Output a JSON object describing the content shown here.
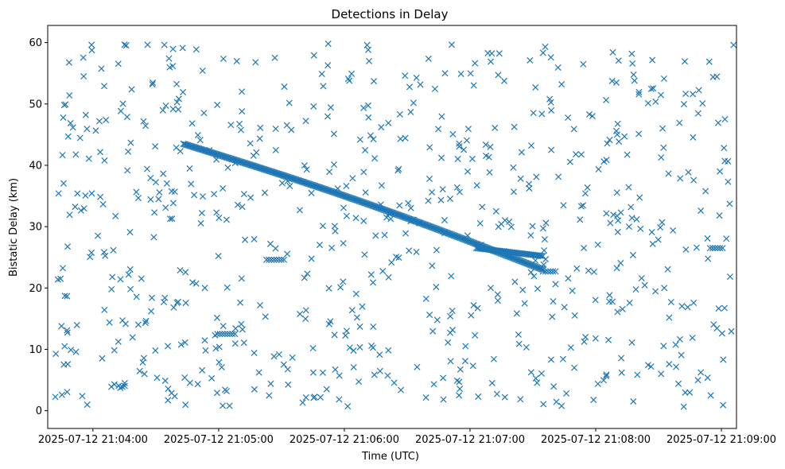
{
  "chart_data": {
    "type": "scatter",
    "title": "Detections in Delay",
    "xlabel": "Time (UTC)",
    "ylabel": "Bistatic Delay (km)",
    "x_unit": "minutes after 2025-07-12 21:04:00",
    "xlim": [
      -0.36,
      5.12
    ],
    "ylim": [
      -2.9,
      62.8
    ],
    "x_ticks": [
      {
        "value": 0,
        "label": "2025-07-12 21:04:00"
      },
      {
        "value": 1,
        "label": "2025-07-12 21:05:00"
      },
      {
        "value": 2,
        "label": "2025-07-12 21:06:00"
      },
      {
        "value": 3,
        "label": "2025-07-12 21:07:00"
      },
      {
        "value": 4,
        "label": "2025-07-12 21:08:00"
      },
      {
        "value": 5,
        "label": "2025-07-12 21:09:00"
      }
    ],
    "y_ticks": [
      {
        "value": 0,
        "label": "0"
      },
      {
        "value": 10,
        "label": "10"
      },
      {
        "value": 20,
        "label": "20"
      },
      {
        "value": 30,
        "label": "30"
      },
      {
        "value": 40,
        "label": "40"
      },
      {
        "value": 50,
        "label": "50"
      },
      {
        "value": 60,
        "label": "60"
      }
    ],
    "marker": "x",
    "color": "#1f77b4",
    "grid": false,
    "series": [
      {
        "name": "main track",
        "x_range": [
          0.72,
          3.58
        ],
        "y_start": 43.5,
        "y_end": 23.0,
        "point_count": 320
      },
      {
        "name": "secondary track",
        "x_range": [
          3.05,
          3.58
        ],
        "y_start": 26.5,
        "y_end": 25.2,
        "point_count": 50
      },
      {
        "name": "clutter cluster A",
        "x": [
          0.99,
          1.01,
          1.03,
          1.05,
          1.07,
          1.09,
          1.11,
          1.13
        ],
        "y": [
          12.5,
          12.5,
          12.5,
          12.5,
          12.5,
          12.5,
          12.5,
          12.5
        ]
      },
      {
        "name": "clutter cluster B",
        "x": [
          1.38,
          1.4,
          1.42,
          1.44,
          1.46,
          1.48,
          1.5,
          1.52
        ],
        "y": [
          24.6,
          24.6,
          24.6,
          24.6,
          24.6,
          24.6,
          24.6,
          24.6
        ]
      },
      {
        "name": "clutter cluster C",
        "x": [
          3.58,
          3.6,
          3.62,
          3.64,
          3.66,
          3.68
        ],
        "y": [
          22.7,
          22.7,
          22.7,
          22.7,
          22.7,
          22.7
        ]
      },
      {
        "name": "clutter cluster D",
        "x": [
          4.91,
          4.93,
          4.95,
          4.97,
          4.99,
          5.01
        ],
        "y": [
          26.5,
          26.5,
          26.5,
          26.5,
          26.5,
          26.5
        ]
      },
      {
        "name": "random false detections",
        "x_range": [
          -0.3,
          5.1
        ],
        "y_range": [
          0.5,
          60.0
        ],
        "point_count": 720,
        "seed": 20250712
      }
    ]
  }
}
